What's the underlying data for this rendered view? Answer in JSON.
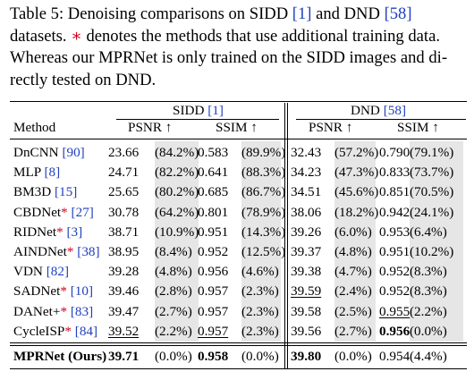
{
  "caption": {
    "l1_a": "Table 5:  Denoising comparisons on SIDD ",
    "l1_c1": "[1]",
    "l1_b": " and DND ",
    "l1_c2": "[58]",
    "l2_a": "datasets. ",
    "l2_star": "∗",
    "l2_b": " denotes the methods that use additional training data.",
    "l3": "Whereas our MPRNet is only trained on the SIDD images and di-",
    "l4": "rectly tested on DND."
  },
  "header": {
    "method": "Method",
    "sidd": "SIDD",
    "sidd_cite": "[1]",
    "dnd": "DND",
    "dnd_cite": "[58]",
    "psnr": "PSNR ↑",
    "ssim": "SSIM ↑"
  },
  "rows": [
    {
      "name": "DnCNN",
      "star": "",
      "cite": "[90]",
      "s_psnr": "23.66",
      "s_psnr_p": "(84.2%)",
      "s_ssim": "0.583",
      "s_ssim_p": "(89.9%)",
      "d_psnr": "32.43",
      "d_psnr_p": "(57.2%)",
      "d_ssim": "0.790",
      "d_ssim_p": "(79.1%)"
    },
    {
      "name": "MLP",
      "star": "",
      "cite": "[8]",
      "s_psnr": "24.71",
      "s_psnr_p": "(82.2%)",
      "s_ssim": "0.641",
      "s_ssim_p": "(88.3%)",
      "d_psnr": "34.23",
      "d_psnr_p": "(47.3%)",
      "d_ssim": "0.833",
      "d_ssim_p": "(73.7%)"
    },
    {
      "name": "BM3D",
      "star": "",
      "cite": "[15]",
      "s_psnr": "25.65",
      "s_psnr_p": "(80.2%)",
      "s_ssim": "0.685",
      "s_ssim_p": "(86.7%)",
      "d_psnr": "34.51",
      "d_psnr_p": "(45.6%)",
      "d_ssim": "0.851",
      "d_ssim_p": "(70.5%)"
    },
    {
      "name": "CBDNet",
      "star": "*",
      "cite": "[27]",
      "s_psnr": "30.78",
      "s_psnr_p": "(64.2%)",
      "s_ssim": "0.801",
      "s_ssim_p": "(78.9%)",
      "d_psnr": "38.06",
      "d_psnr_p": "(18.2%)",
      "d_ssim": "0.942",
      "d_ssim_p": "(24.1%)"
    },
    {
      "name": "RIDNet",
      "star": "*",
      "cite": "[3]",
      "s_psnr": "38.71",
      "s_psnr_p": "(10.9%)",
      "s_ssim": "0.951",
      "s_ssim_p": "(14.3%)",
      "d_psnr": "39.26",
      "d_psnr_p": "(6.0%)",
      "d_ssim": "0.953",
      "d_ssim_p": "(6.4%)"
    },
    {
      "name": "AINDNet",
      "star": "*",
      "cite": "[38]",
      "s_psnr": "38.95",
      "s_psnr_p": "(8.4%)",
      "s_ssim": "0.952",
      "s_ssim_p": "(12.5%)",
      "d_psnr": "39.37",
      "d_psnr_p": "(4.8%)",
      "d_ssim": "0.951",
      "d_ssim_p": "(10.2%)"
    },
    {
      "name": "VDN",
      "star": "",
      "cite": "[82]",
      "s_psnr": "39.28",
      "s_psnr_p": "(4.8%)",
      "s_ssim": "0.956",
      "s_ssim_p": "(4.6%)",
      "d_psnr": "39.38",
      "d_psnr_p": "(4.7%)",
      "d_ssim": "0.952",
      "d_ssim_p": "(8.3%)"
    },
    {
      "name": "SADNet",
      "star": "*",
      "cite": "[10]",
      "s_psnr": "39.46",
      "s_psnr_p": "(2.8%)",
      "s_ssim": "0.957",
      "s_ssim_p": "(2.3%)",
      "d_psnr": "39.59",
      "d_psnr_p": "(2.4%)",
      "d_ssim": "0.952",
      "d_ssim_p": "(8.3%)"
    },
    {
      "name": "DANet+",
      "star": "*",
      "cite": "[83]",
      "s_psnr": "39.47",
      "s_psnr_p": "(2.7%)",
      "s_ssim": "0.957",
      "s_ssim_p": "(2.3%)",
      "d_psnr": "39.58",
      "d_psnr_p": "(2.5%)",
      "d_ssim": "0.955",
      "d_ssim_p": "(2.2%)"
    },
    {
      "name": "CycleISP",
      "star": "*",
      "cite": "[84]",
      "s_psnr": "39.52",
      "s_psnr_p": "(2.2%)",
      "s_ssim": "0.957",
      "s_ssim_p": "(2.3%)",
      "d_psnr": "39.56",
      "d_psnr_p": "(2.7%)",
      "d_ssim": "0.956",
      "d_ssim_p": "(0.0%)"
    }
  ],
  "final_row": {
    "name": "MPRNet (Ours)",
    "s_psnr": "39.71",
    "s_psnr_p": "(0.0%)",
    "s_ssim": "0.958",
    "s_ssim_p": "(0.0%)",
    "d_psnr": "39.80",
    "d_psnr_p": "(0.0%)",
    "d_ssim": "0.954",
    "d_ssim_p": "(4.4%)"
  },
  "emphasis": {
    "underlined": [
      "CycleISP.s_psnr",
      "CycleISP.s_ssim",
      "SADNet.d_psnr",
      "DANet+.d_ssim"
    ],
    "bold": [
      "MPRNet.s_psnr",
      "MPRNet.s_ssim",
      "MPRNet.d_psnr",
      "CycleISP.d_ssim"
    ]
  },
  "colors": {
    "star": "#d0001c",
    "citation": "#1f3fbf",
    "shade": "#e6e6e6"
  }
}
